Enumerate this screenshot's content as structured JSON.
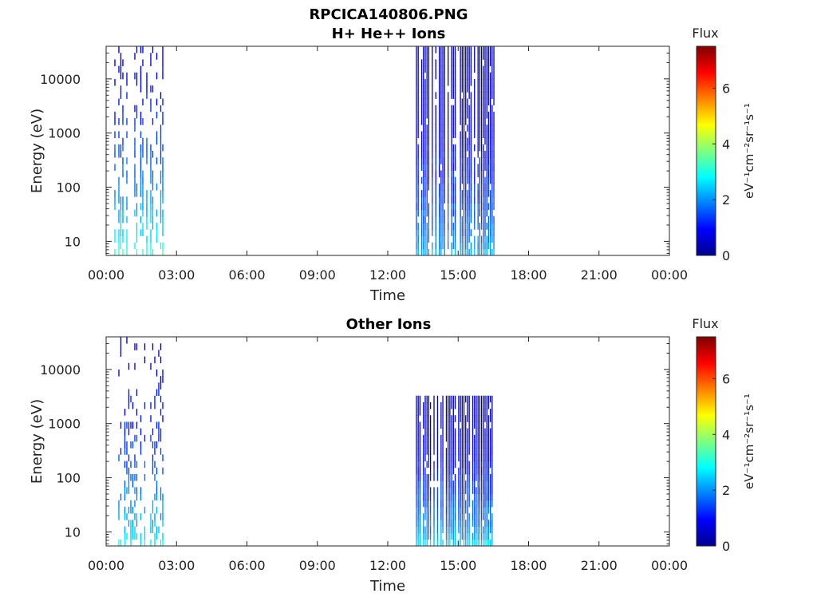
{
  "figure_title": "RPCICA140806.PNG",
  "chart_data": [
    {
      "type": "heatmap",
      "title": "H+ He++ Ions",
      "xlabel": "Time",
      "ylabel": "Energy (eV)",
      "x_tick_labels": [
        "00:00",
        "03:00",
        "06:00",
        "09:00",
        "12:00",
        "15:00",
        "18:00",
        "21:00",
        "00:00"
      ],
      "x_range_hours": [
        0,
        24
      ],
      "y_scale": "log",
      "y_range_eV": [
        5.5,
        40000
      ],
      "y_ticks": [
        10,
        100,
        1000,
        10000
      ],
      "y_tick_labels": [
        "10",
        "100",
        "1000",
        "10000"
      ],
      "colorbar": {
        "title": "Flux",
        "unit": "eV⁻¹cm⁻²sr⁻¹s⁻¹",
        "range": [
          0,
          7.5
        ],
        "ticks": [
          0,
          2,
          4,
          6
        ],
        "tick_labels": [
          "0",
          "2",
          "4",
          "6"
        ],
        "colormap": "jet"
      },
      "segments": [
        {
          "t_start_h": 0.35,
          "t_end_h": 2.45,
          "e_min_eV": 5.5,
          "e_max_eV": 40000,
          "flux_low_energy": 3.2,
          "flux_high_energy": 0.6,
          "coverage": "sparse"
        },
        {
          "t_start_h": 13.2,
          "t_end_h": 16.5,
          "e_min_eV": 5.5,
          "e_max_eV": 40000,
          "flux_low_energy": 2.2,
          "flux_high_energy": 0.25,
          "coverage": "dense-stripes"
        }
      ],
      "grid": false
    },
    {
      "type": "heatmap",
      "title": "Other Ions",
      "xlabel": "Time",
      "ylabel": "Energy (eV)",
      "x_tick_labels": [
        "00:00",
        "03:00",
        "06:00",
        "09:00",
        "12:00",
        "15:00",
        "18:00",
        "21:00",
        "00:00"
      ],
      "x_range_hours": [
        0,
        24
      ],
      "y_scale": "log",
      "y_range_eV": [
        5.5,
        40000
      ],
      "y_ticks": [
        10,
        100,
        1000,
        10000
      ],
      "y_tick_labels": [
        "10",
        "100",
        "1000",
        "10000"
      ],
      "colorbar": {
        "title": "Flux",
        "unit": "eV⁻¹cm⁻²sr⁻¹s⁻¹",
        "range": [
          0,
          7.5
        ],
        "ticks": [
          0,
          2,
          4,
          6
        ],
        "tick_labels": [
          "0",
          "2",
          "4",
          "6"
        ],
        "colormap": "jet"
      },
      "segments": [
        {
          "t_start_h": 0.35,
          "t_end_h": 2.45,
          "e_min_eV": 5.5,
          "e_max_eV": 40000,
          "flux_low_energy": 2.8,
          "flux_high_energy": 0.5,
          "coverage": "very-sparse"
        },
        {
          "t_start_h": 13.2,
          "t_end_h": 16.5,
          "e_min_eV": 5.5,
          "e_max_eV": 3000,
          "flux_low_energy": 2.5,
          "flux_high_energy": 0.3,
          "coverage": "dense-stripes"
        }
      ],
      "grid": false
    }
  ]
}
